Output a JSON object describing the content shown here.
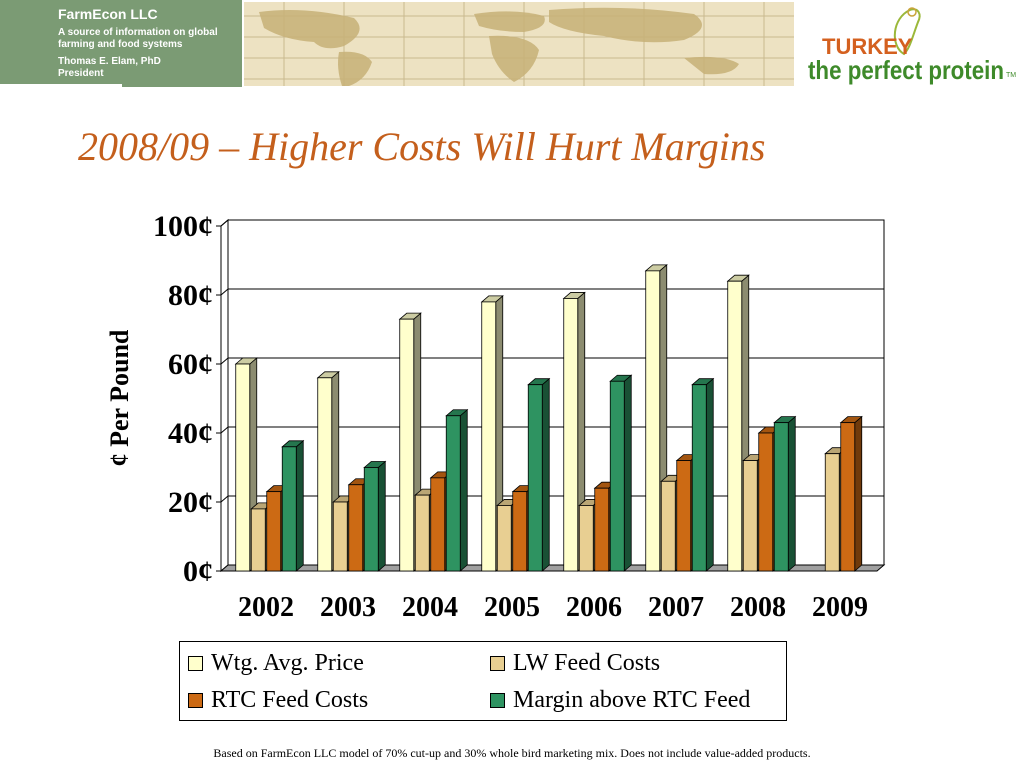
{
  "header": {
    "company": "FarmEcon LLC",
    "tagline": "A source of information on global farming and food systems",
    "person_name": "Thomas E. Elam, PhD",
    "person_title": "President"
  },
  "logo": {
    "line1": "TURKEY",
    "line2": "the perfect protein",
    "tm": "TM"
  },
  "slide_title": "2008/09 – Higher Costs Will Hurt Margins",
  "footnote": "Based on FarmEcon LLC model of 70% cut-up and 30% whole bird marketing mix.  Does not include value-added products.",
  "chart_data": {
    "type": "bar",
    "title": "",
    "xlabel": "",
    "ylabel": "¢ Per Pound",
    "ylim": [
      0,
      100
    ],
    "yticks": [
      "0¢",
      "20¢",
      "40¢",
      "60¢",
      "80¢",
      "100¢"
    ],
    "categories": [
      "2002",
      "2003",
      "2004",
      "2005",
      "2006",
      "2007",
      "2008",
      "2009"
    ],
    "legend_position": "bottom",
    "grid": true,
    "series": [
      {
        "name": "Wtg. Avg. Price",
        "color": "#ffffcc",
        "values": [
          60,
          56,
          73,
          78,
          79,
          87,
          84,
          null
        ]
      },
      {
        "name": "LW Feed Costs",
        "color": "#e8cf92",
        "values": [
          18,
          20,
          22,
          19,
          19,
          26,
          32,
          34
        ]
      },
      {
        "name": "RTC Feed Costs",
        "color": "#cc6a14",
        "values": [
          23,
          25,
          27,
          23,
          24,
          32,
          40,
          43
        ]
      },
      {
        "name": "Margin above RTC Feed",
        "color": "#2e9361",
        "values": [
          36,
          30,
          45,
          54,
          55,
          54,
          43,
          null
        ]
      }
    ]
  }
}
